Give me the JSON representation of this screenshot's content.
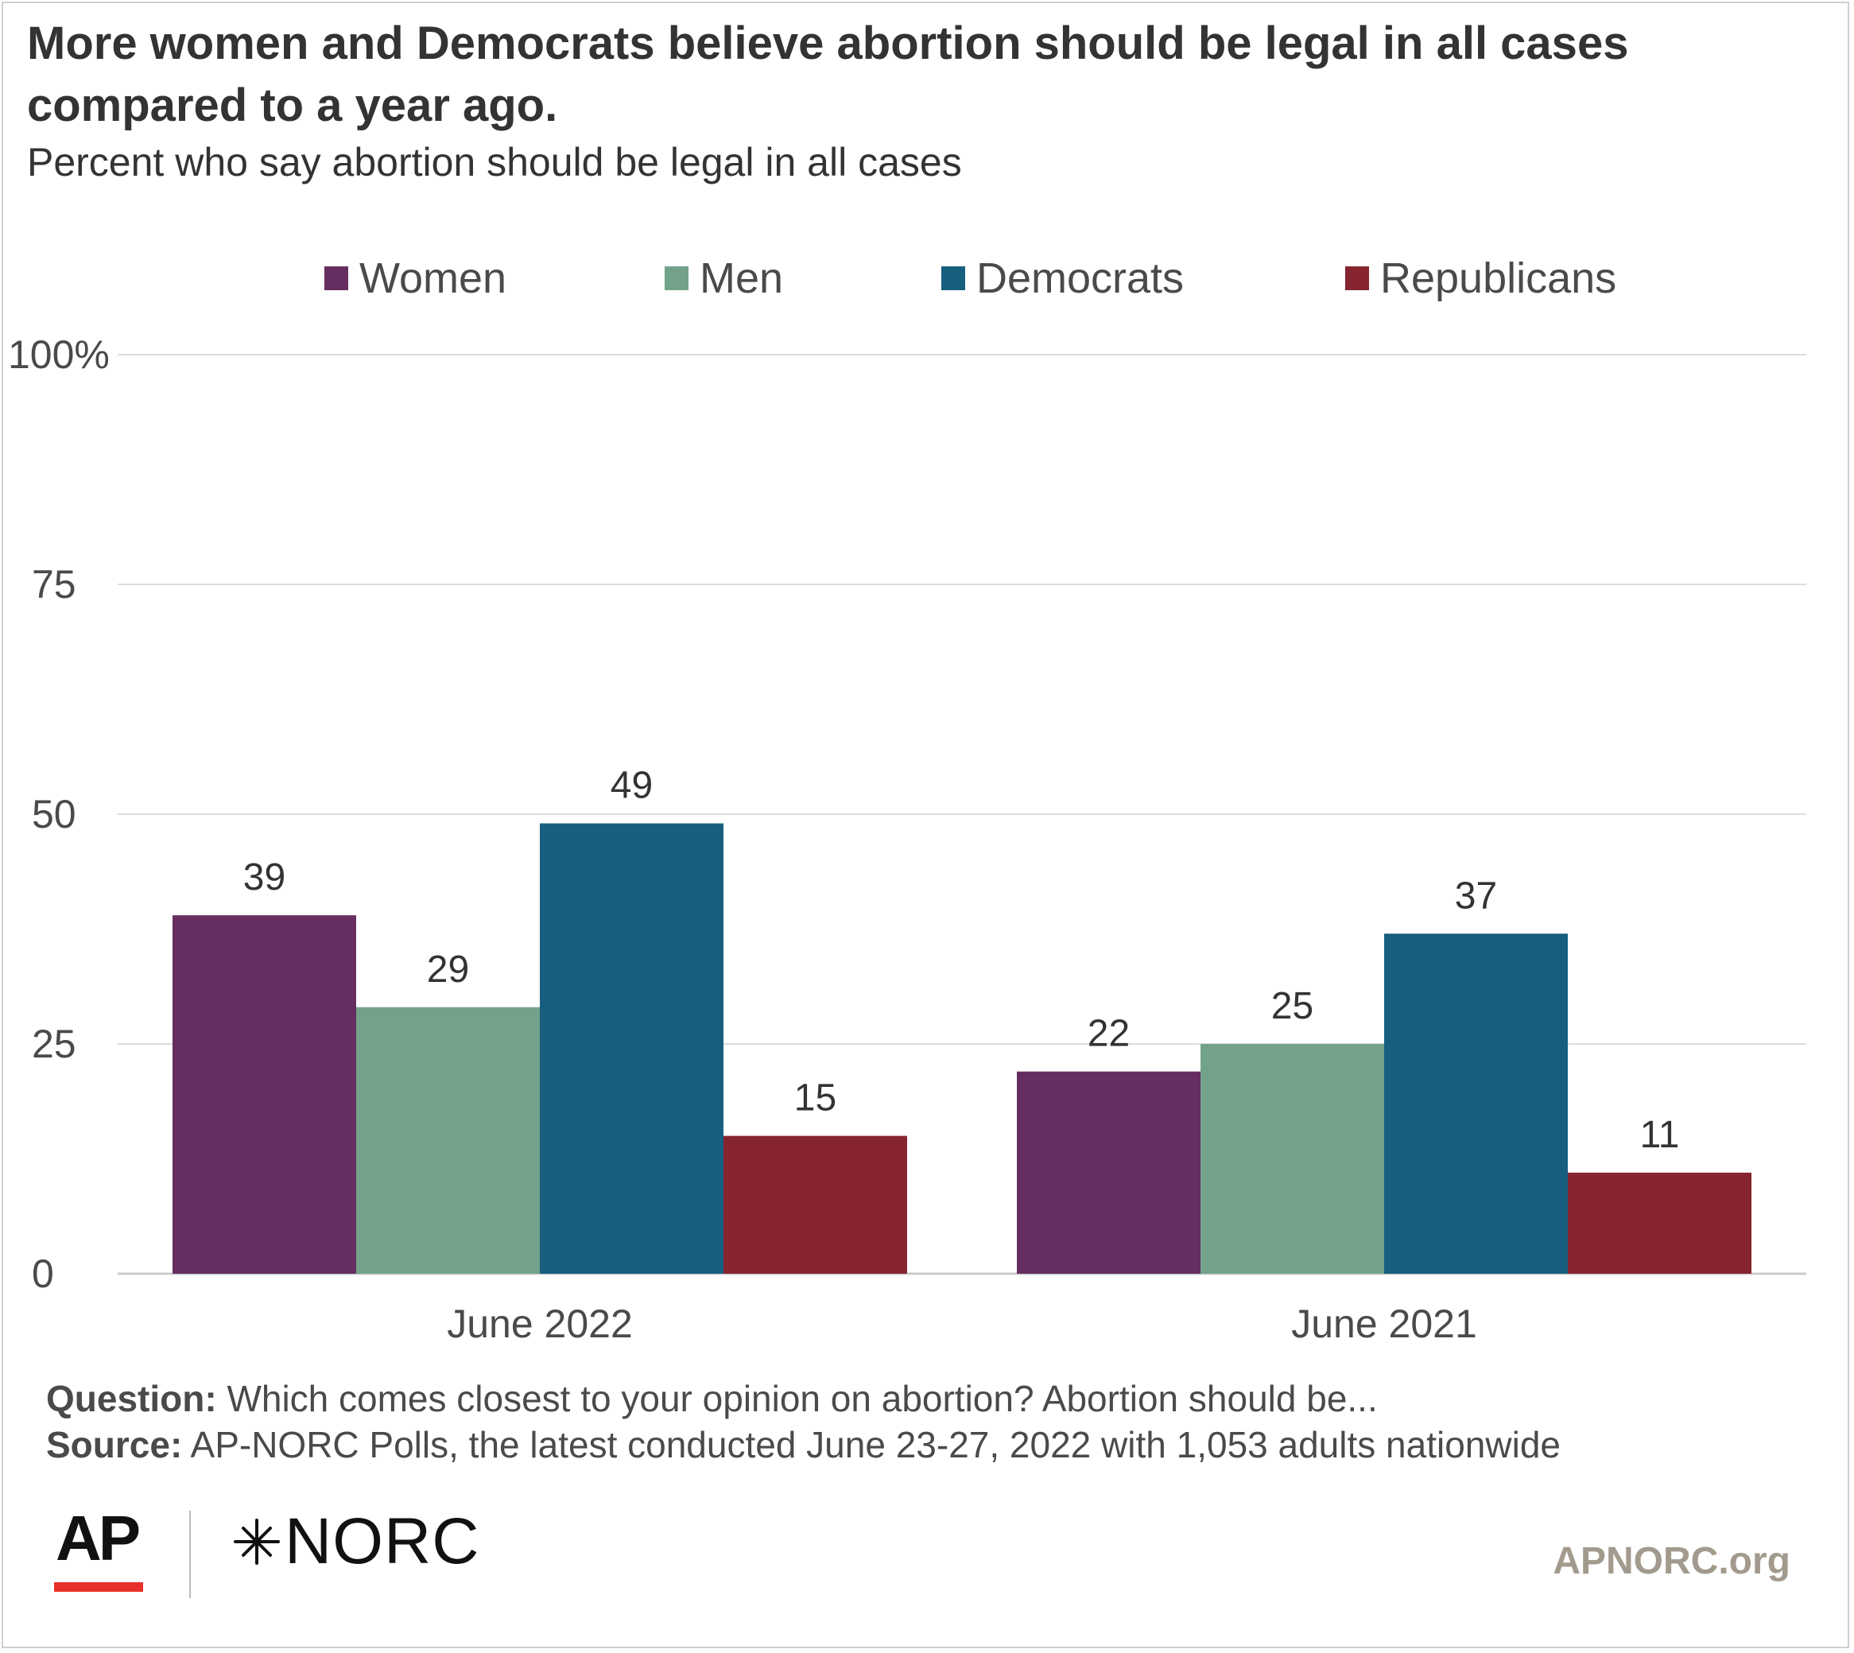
{
  "title": "More women and Democrats believe abortion should be legal in all cases compared to a year ago.",
  "subtitle": "Percent who say abortion should be legal in all cases",
  "colors": {
    "women": "#662e60",
    "men": "#72a38a",
    "democrats": "#185e7e",
    "republicans": "#862530",
    "grid": "#dcdcdc",
    "axis": "#cccccc"
  },
  "chart_data": {
    "type": "bar",
    "categories": [
      "June 2022",
      "June 2021"
    ],
    "series": [
      {
        "name": "Women",
        "values": [
          39,
          22
        ],
        "color": "#662e60"
      },
      {
        "name": "Men",
        "values": [
          29,
          25
        ],
        "color": "#72a38a"
      },
      {
        "name": "Democrats",
        "values": [
          49,
          37
        ],
        "color": "#185e7e"
      },
      {
        "name": "Republicans",
        "values": [
          15,
          11
        ],
        "color": "#862530"
      }
    ],
    "ylim": [
      0,
      100
    ],
    "yticks": [
      0,
      25,
      50,
      75,
      100
    ],
    "ytick_labels": [
      "0",
      "25",
      "50",
      "75",
      "100%"
    ],
    "xlabel": "",
    "ylabel": "",
    "grid": true,
    "legend_position": "top"
  },
  "notes": {
    "question_label": "Question:",
    "question_text": " Which comes closest to your opinion on abortion? Abortion should be...",
    "source_label": "Source:",
    "source_text": " AP-NORC Polls, the latest conducted June 23-27, 2022 with 1,053 adults nationwide"
  },
  "logos": {
    "ap": "AP",
    "norc": "NORC",
    "site": "APNORC.org"
  }
}
